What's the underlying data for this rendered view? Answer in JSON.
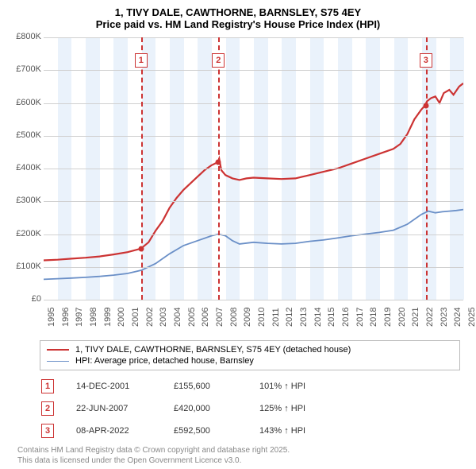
{
  "title": {
    "line1": "1, TIVY DALE, CAWTHORNE, BARNSLEY, S75 4EY",
    "line2": "Price paid vs. HM Land Registry's House Price Index (HPI)"
  },
  "chart": {
    "type": "line",
    "background_color": "#ffffff",
    "grid_color": "#d0d0d0",
    "axis_text_color": "#555555",
    "axis_fontsize": 11,
    "y": {
      "min": 0,
      "max": 800000,
      "tick_step": 100000,
      "tick_prefix": "£",
      "tick_suffix": "K",
      "tick_divisor": 1000
    },
    "x": {
      "min": 1995,
      "max": 2025,
      "ticks": [
        1995,
        1996,
        1997,
        1998,
        1999,
        2000,
        2001,
        2002,
        2003,
        2004,
        2005,
        2006,
        2007,
        2008,
        2009,
        2010,
        2011,
        2012,
        2013,
        2014,
        2015,
        2016,
        2017,
        2018,
        2019,
        2020,
        2021,
        2022,
        2023,
        2024,
        2025
      ]
    },
    "shaded_years": [
      1996,
      1998,
      2000,
      2002,
      2004,
      2006,
      2008,
      2010,
      2012,
      2014,
      2016,
      2018,
      2020,
      2022,
      2024
    ],
    "series": [
      {
        "name": "price_paid",
        "label": "1, TIVY DALE, CAWTHORNE, BARNSLEY, S75 4EY (detached house)",
        "color": "#cc3333",
        "line_width": 2.2,
        "data": [
          [
            1995,
            120000
          ],
          [
            1996,
            122000
          ],
          [
            1997,
            125000
          ],
          [
            1998,
            128000
          ],
          [
            1999,
            132000
          ],
          [
            2000,
            138000
          ],
          [
            2001,
            145000
          ],
          [
            2001.95,
            155600
          ],
          [
            2002.5,
            175000
          ],
          [
            2003,
            210000
          ],
          [
            2003.5,
            240000
          ],
          [
            2004,
            280000
          ],
          [
            2004.5,
            310000
          ],
          [
            2005,
            335000
          ],
          [
            2005.5,
            355000
          ],
          [
            2006,
            375000
          ],
          [
            2006.5,
            395000
          ],
          [
            2007,
            410000
          ],
          [
            2007.47,
            420000
          ],
          [
            2007.55,
            430000
          ],
          [
            2007.7,
            395000
          ],
          [
            2008,
            380000
          ],
          [
            2008.5,
            370000
          ],
          [
            2009,
            365000
          ],
          [
            2009.5,
            370000
          ],
          [
            2010,
            372000
          ],
          [
            2011,
            370000
          ],
          [
            2012,
            368000
          ],
          [
            2013,
            370000
          ],
          [
            2014,
            380000
          ],
          [
            2015,
            390000
          ],
          [
            2016,
            400000
          ],
          [
            2017,
            415000
          ],
          [
            2018,
            430000
          ],
          [
            2019,
            445000
          ],
          [
            2020,
            460000
          ],
          [
            2020.5,
            475000
          ],
          [
            2021,
            505000
          ],
          [
            2021.5,
            550000
          ],
          [
            2022,
            580000
          ],
          [
            2022.27,
            592500
          ],
          [
            2022.4,
            605000
          ],
          [
            2022.7,
            615000
          ],
          [
            2023,
            620000
          ],
          [
            2023.3,
            600000
          ],
          [
            2023.6,
            630000
          ],
          [
            2024,
            640000
          ],
          [
            2024.3,
            625000
          ],
          [
            2024.7,
            650000
          ],
          [
            2025,
            660000
          ]
        ]
      },
      {
        "name": "hpi",
        "label": "HPI: Average price, detached house, Barnsley",
        "color": "#6a8fc7",
        "line_width": 1.8,
        "data": [
          [
            1995,
            62000
          ],
          [
            1996,
            64000
          ],
          [
            1997,
            66000
          ],
          [
            1998,
            68000
          ],
          [
            1999,
            71000
          ],
          [
            2000,
            75000
          ],
          [
            2001,
            80000
          ],
          [
            2002,
            90000
          ],
          [
            2003,
            110000
          ],
          [
            2004,
            140000
          ],
          [
            2005,
            165000
          ],
          [
            2006,
            180000
          ],
          [
            2007,
            195000
          ],
          [
            2007.5,
            200000
          ],
          [
            2008,
            195000
          ],
          [
            2008.5,
            180000
          ],
          [
            2009,
            170000
          ],
          [
            2010,
            175000
          ],
          [
            2011,
            172000
          ],
          [
            2012,
            170000
          ],
          [
            2013,
            172000
          ],
          [
            2014,
            178000
          ],
          [
            2015,
            182000
          ],
          [
            2016,
            188000
          ],
          [
            2017,
            195000
          ],
          [
            2018,
            200000
          ],
          [
            2019,
            205000
          ],
          [
            2020,
            212000
          ],
          [
            2021,
            230000
          ],
          [
            2022,
            260000
          ],
          [
            2022.5,
            270000
          ],
          [
            2023,
            265000
          ],
          [
            2023.5,
            268000
          ],
          [
            2024,
            270000
          ],
          [
            2024.5,
            272000
          ],
          [
            2025,
            275000
          ]
        ]
      }
    ],
    "markers": [
      {
        "n": "1",
        "x": 2001.95,
        "y": 155600
      },
      {
        "n": "2",
        "x": 2007.47,
        "y": 420000
      },
      {
        "n": "3",
        "x": 2022.27,
        "y": 592500
      }
    ]
  },
  "legend": {
    "items": [
      {
        "color": "#cc3333",
        "width": 2.2,
        "label_path": "chart.series.0.label"
      },
      {
        "color": "#6a8fc7",
        "width": 1.8,
        "label_path": "chart.series.1.label"
      }
    ]
  },
  "sales": [
    {
      "n": "1",
      "date": "14-DEC-2001",
      "price": "£155,600",
      "pct": "101% ↑ HPI"
    },
    {
      "n": "2",
      "date": "22-JUN-2007",
      "price": "£420,000",
      "pct": "125% ↑ HPI"
    },
    {
      "n": "3",
      "date": "08-APR-2022",
      "price": "£592,500",
      "pct": "143% ↑ HPI"
    }
  ],
  "footer": {
    "line1": "Contains HM Land Registry data © Crown copyright and database right 2025.",
    "line2": "This data is licensed under the Open Government Licence v3.0."
  }
}
